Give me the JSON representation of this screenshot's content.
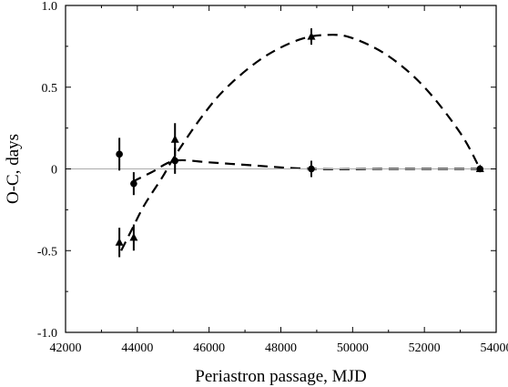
{
  "chart_data": {
    "type": "scatter",
    "title": "",
    "xlabel": "Periastron passage, MJD",
    "ylabel": "O-C, days",
    "xlim": [
      42000,
      54000
    ],
    "ylim": [
      -1.0,
      1.0
    ],
    "x_ticks": [
      42000,
      44000,
      46000,
      48000,
      50000,
      52000,
      54000
    ],
    "x_tick_labels": [
      "42000",
      "44000",
      "46000",
      "48000",
      "50000",
      "52000",
      "54000"
    ],
    "y_ticks": [
      -1.0,
      -0.5,
      0,
      0.5,
      1.0
    ],
    "y_tick_labels": [
      "-1.0",
      "-0.5",
      "0",
      "0.5",
      "1.0"
    ],
    "grid": false,
    "reference_line": {
      "y": 0
    },
    "series": [
      {
        "marker": "circle",
        "points": [
          {
            "x": 43500,
            "y": 0.09,
            "err": 0.1
          },
          {
            "x": 43900,
            "y": -0.09,
            "err": 0.07
          },
          {
            "x": 45050,
            "y": 0.05,
            "err": 0.08
          },
          {
            "x": 48850,
            "y": 0.0,
            "err": 0.05
          },
          {
            "x": 53550,
            "y": 0.0,
            "err": 0.0
          }
        ]
      },
      {
        "marker": "triangle",
        "points": [
          {
            "x": 43500,
            "y": -0.45,
            "err": 0.09
          },
          {
            "x": 43900,
            "y": -0.42,
            "err": 0.08
          },
          {
            "x": 45050,
            "y": 0.18,
            "err": 0.1
          },
          {
            "x": 48850,
            "y": 0.81,
            "err": 0.05
          },
          {
            "x": 53550,
            "y": 0.0,
            "err": 0.0
          }
        ]
      }
    ],
    "fit_curves": [
      {
        "style": "dashed",
        "points": [
          [
            43850,
            -0.08
          ],
          [
            44400,
            -0.02
          ],
          [
            45050,
            0.05
          ],
          [
            46000,
            0.04
          ],
          [
            47000,
            0.025
          ],
          [
            48850,
            0.0
          ],
          [
            51000,
            0.0
          ],
          [
            53550,
            0.0
          ]
        ]
      },
      {
        "style": "dashed",
        "points": [
          [
            43550,
            -0.5
          ],
          [
            43850,
            -0.37
          ],
          [
            44200,
            -0.22
          ],
          [
            44700,
            -0.05
          ],
          [
            45050,
            0.08
          ],
          [
            45800,
            0.32
          ],
          [
            46500,
            0.5
          ],
          [
            47500,
            0.68
          ],
          [
            48500,
            0.79
          ],
          [
            49300,
            0.82
          ],
          [
            50000,
            0.8
          ],
          [
            51000,
            0.69
          ],
          [
            52000,
            0.5
          ],
          [
            53000,
            0.22
          ],
          [
            53550,
            0.0
          ]
        ]
      }
    ],
    "colors": {
      "axes": "#000000",
      "marks": "#000000",
      "reference_line": "#aaaaaa"
    }
  }
}
